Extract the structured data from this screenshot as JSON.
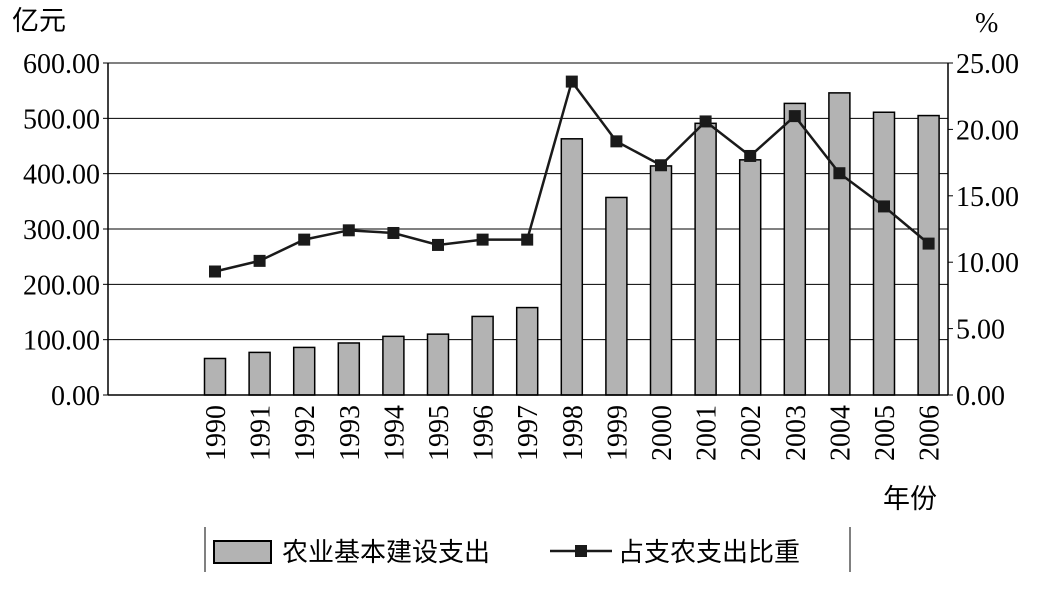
{
  "chart_data": {
    "type": "bar",
    "categories": [
      "1990",
      "1991",
      "1992",
      "1993",
      "1994",
      "1995",
      "1996",
      "1997",
      "1998",
      "1999",
      "2000",
      "2001",
      "2002",
      "2003",
      "2004",
      "2005",
      "2006"
    ],
    "series": [
      {
        "name": "农业基本建设支出",
        "type": "bar",
        "axis": "left",
        "values": [
          66,
          77,
          86,
          94,
          106,
          110,
          142,
          158,
          463,
          357,
          414,
          491,
          425,
          527,
          546,
          511,
          505
        ]
      },
      {
        "name": "占支农支出比重",
        "type": "line",
        "axis": "right",
        "values": [
          9.3,
          10.1,
          11.7,
          12.4,
          12.2,
          11.3,
          11.7,
          11.7,
          23.6,
          19.1,
          17.3,
          20.6,
          18.0,
          21.0,
          16.7,
          14.2,
          11.4
        ]
      }
    ],
    "ylabel": "亿元",
    "y2label": "%",
    "xlabel": "年份",
    "ylim": [
      0,
      600
    ],
    "y2lim": [
      0,
      25
    ],
    "yticks": [
      "0.00",
      "100.00",
      "200.00",
      "300.00",
      "400.00",
      "500.00",
      "600.00"
    ],
    "y2ticks": [
      "0.00",
      "5.00",
      "10.00",
      "15.00",
      "20.00",
      "25.00"
    ],
    "grid": true,
    "legend": "bottom",
    "colors": {
      "bar": "#b3b3b3",
      "line": "#1a1a1a"
    }
  }
}
